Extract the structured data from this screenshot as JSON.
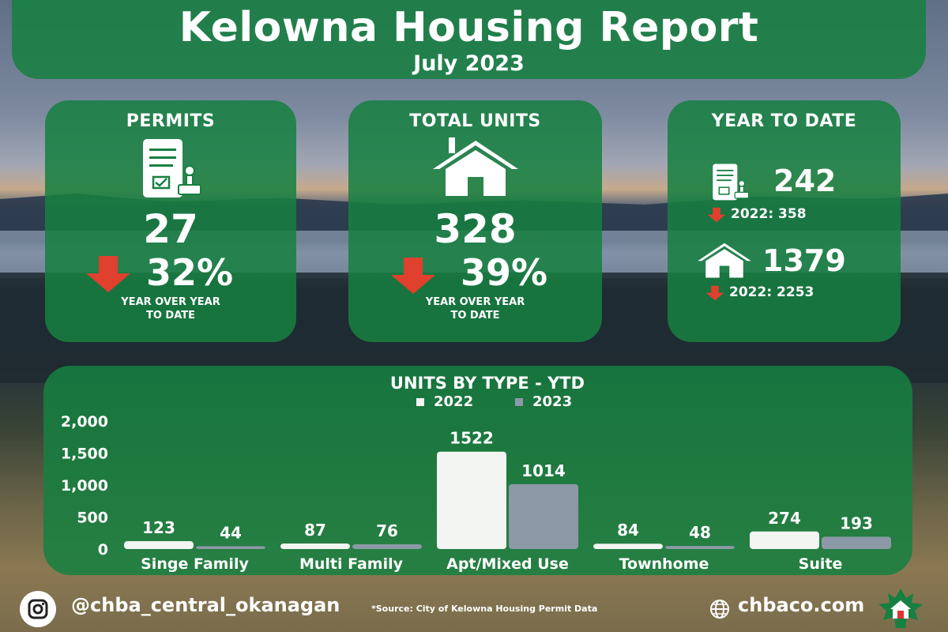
{
  "header": {
    "title": "Kelowna Housing Report",
    "subtitle": "July 2023"
  },
  "permits": {
    "title": "PERMITS",
    "value": "27",
    "change": "32%",
    "note_line1": "YEAR OVER YEAR",
    "note_line2": "TO DATE"
  },
  "total_units": {
    "title": "TOTAL UNITS",
    "value": "328",
    "change": "39%",
    "note_line1": "YEAR OVER YEAR",
    "note_line2": "TO DATE"
  },
  "ytd": {
    "title": "YEAR TO DATE",
    "permits_value": "242",
    "permits_prev": "2022: 358",
    "units_value": "1379",
    "units_prev": "2022: 2253"
  },
  "colors": {
    "panel_green": "#168040",
    "down_arrow": "#e0402e",
    "bar_2022": "#f3f5f2",
    "bar_2023": "#8c99a6"
  },
  "icons": [
    "document-stamp-icon",
    "house-icon",
    "down-arrow-icon",
    "instagram-icon",
    "globe-icon",
    "chba-logo-icon"
  ],
  "chart_data": {
    "type": "bar",
    "title": "UNITS BY TYPE - YTD",
    "categories": [
      "Singe Family",
      "Multi Family",
      "Apt/Mixed Use",
      "Townhome",
      "Suite"
    ],
    "series": [
      {
        "name": "2022",
        "values": [
          123,
          87,
          1522,
          84,
          274
        ]
      },
      {
        "name": "2023",
        "values": [
          44,
          76,
          1014,
          48,
          193
        ]
      }
    ],
    "ylim": [
      0,
      2000
    ],
    "yticks": [
      "2,000",
      "1,500",
      "1,000",
      "500",
      "0"
    ],
    "legend_position": "top-center",
    "grid": false
  },
  "footer": {
    "handle": "@chba_central_okanagan",
    "source": "*Source: City of Kelowna Housing Permit Data",
    "website": "chbaco.com"
  }
}
